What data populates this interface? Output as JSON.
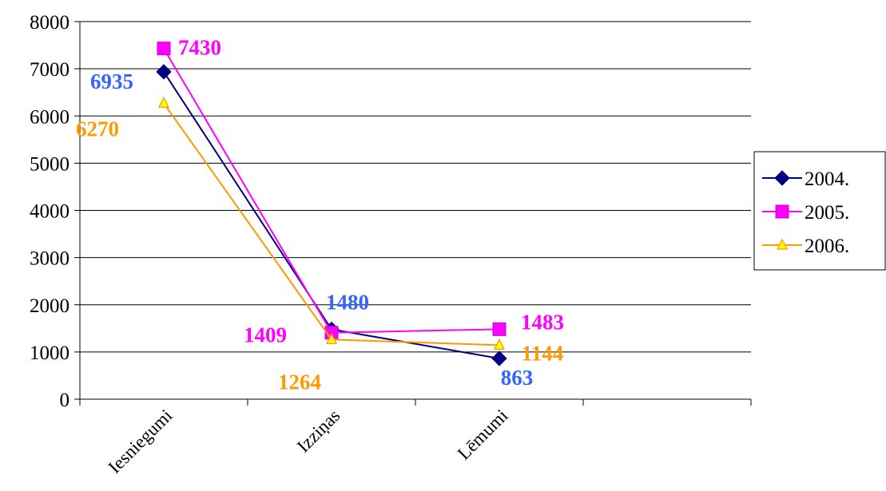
{
  "chart_data": {
    "type": "line",
    "title": "",
    "xlabel": "",
    "ylabel": "",
    "categories": [
      "Iesniegumi",
      "Izziņas",
      "Lēmumi"
    ],
    "ylim": [
      0,
      8000
    ],
    "yticks": [
      "0",
      "1000",
      "2000",
      "3000",
      "4000",
      "5000",
      "6000",
      "7000",
      "8000"
    ],
    "grid": "horizontal",
    "legend": "right",
    "series": [
      {
        "name": "2004.",
        "values": [
          6935,
          1480,
          863
        ],
        "labels": [
          "6935",
          "1480",
          "863"
        ],
        "color": "#000080",
        "label_color": "#3366ff",
        "marker": "diamond"
      },
      {
        "name": "2005.",
        "values": [
          7430,
          1409,
          1483
        ],
        "labels": [
          "7430",
          "1409",
          "1483"
        ],
        "color": "#ff00ff",
        "label_color": "#ff00ff",
        "marker": "square"
      },
      {
        "name": "2006.",
        "values": [
          6270,
          1264,
          1144
        ],
        "labels": [
          "6270",
          "1264",
          "1144"
        ],
        "color": "#ff9900",
        "label_color": "#ff9900",
        "marker": "triangle"
      }
    ]
  }
}
